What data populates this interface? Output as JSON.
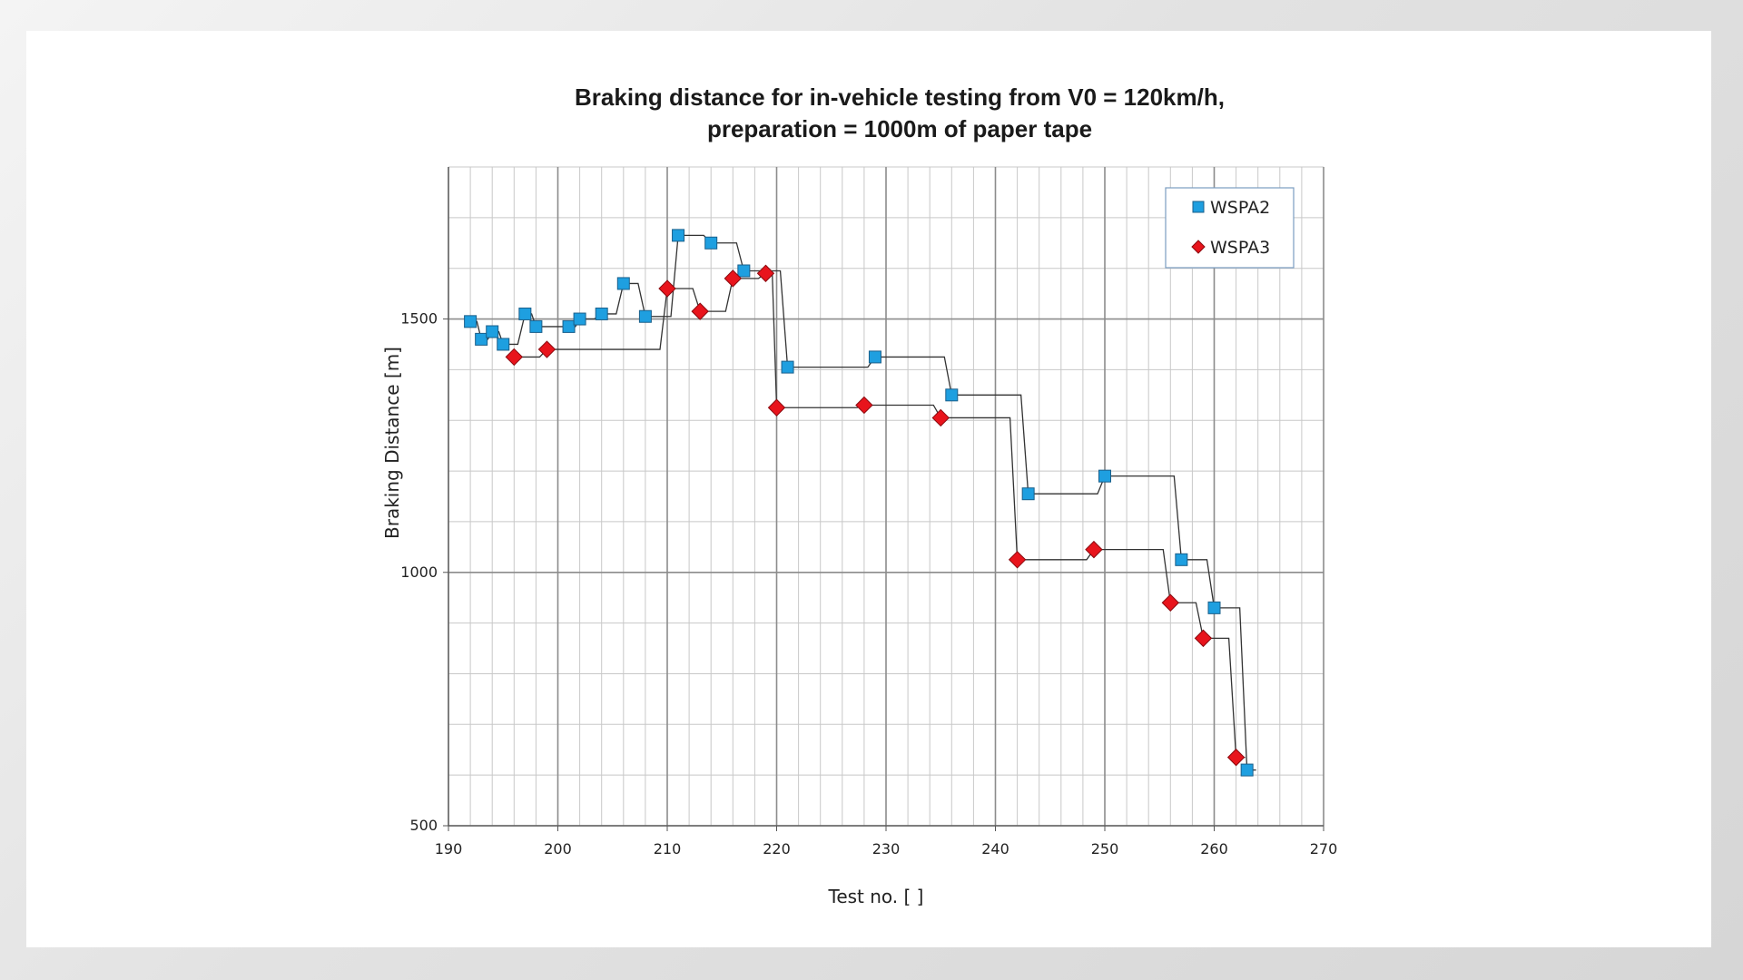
{
  "chart_data": {
    "type": "line",
    "title_lines": [
      "Braking distance for in-vehicle testing from V0 = 120km/h,",
      "preparation = 1000m of paper tape"
    ],
    "xlabel": "Test no. [ ]",
    "ylabel": "Braking Distance [m]",
    "xlim": [
      190,
      270
    ],
    "ylim": [
      500,
      1800
    ],
    "x_ticks": [
      190,
      200,
      210,
      220,
      230,
      240,
      250,
      260,
      270
    ],
    "y_ticks": [
      500,
      1000,
      1500
    ],
    "grid": true,
    "legend_position": "top-right",
    "series": [
      {
        "name": "WSPA2",
        "marker": "square",
        "color": "#1e9fe0",
        "x": [
          192,
          193,
          194,
          195,
          197,
          198,
          201,
          202,
          204,
          206,
          208,
          211,
          214,
          217,
          221,
          229,
          236,
          243,
          250,
          257,
          260,
          263
        ],
        "y": [
          1495,
          1460,
          1475,
          1450,
          1510,
          1485,
          1485,
          1500,
          1510,
          1570,
          1505,
          1665,
          1650,
          1595,
          1405,
          1425,
          1350,
          1155,
          1190,
          1025,
          930,
          610
        ]
      },
      {
        "name": "WSPA3",
        "marker": "diamond",
        "color": "#e8141c",
        "x": [
          196,
          199,
          210,
          213,
          216,
          219,
          220,
          228,
          235,
          242,
          249,
          256,
          259,
          262
        ],
        "y": [
          1425,
          1440,
          1560,
          1515,
          1580,
          1590,
          1325,
          1330,
          1305,
          1025,
          1045,
          940,
          870,
          635
        ]
      }
    ]
  }
}
